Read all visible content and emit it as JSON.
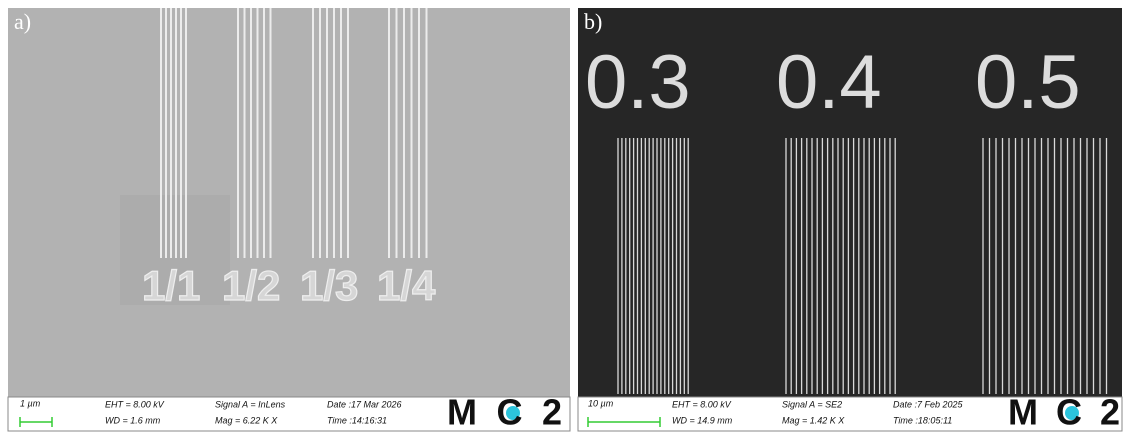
{
  "panels": [
    {
      "label": "a)",
      "annotations": [
        "1/1",
        "1/2",
        "1/3",
        "1/4"
      ],
      "info": {
        "scale": "1 µm",
        "eht": "EHT =  8.00 kV",
        "wd": "WD =  1.6 mm",
        "signal": "Signal A = InLens",
        "mag": "Mag =    6.22 K X",
        "date": "Date :17 Mar 2026",
        "time": "Time :14:16:31",
        "logo": "MC2"
      }
    },
    {
      "label": "b)",
      "annotations": [
        "0.3",
        "0.4",
        "0.5"
      ],
      "info": {
        "scale": "10 µm",
        "eht": "EHT =  8.00 kV",
        "wd": "WD = 14.9 mm",
        "signal": "Signal A = SE2",
        "mag": "Mag =    1.42 K X",
        "date": "Date :7 Feb 2025",
        "time": "Time :18:05:11",
        "logo": "MC2"
      }
    }
  ]
}
